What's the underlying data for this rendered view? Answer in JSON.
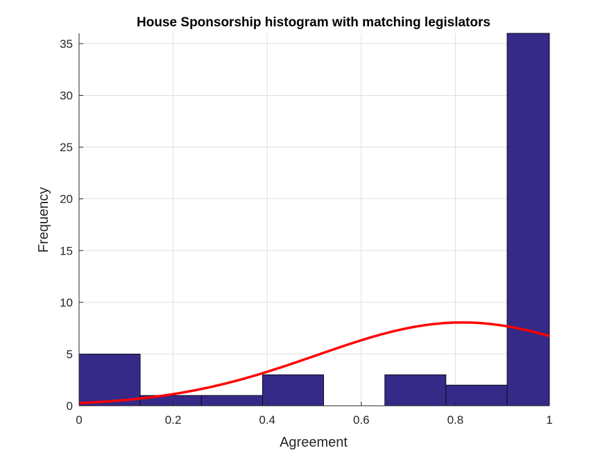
{
  "chart_data": {
    "type": "bar",
    "title": "House Sponsorship histogram with matching legislators",
    "xlabel": "Agreement",
    "ylabel": "Frequency",
    "xlim": [
      0,
      1
    ],
    "ylim": [
      0,
      36
    ],
    "xticks": [
      0,
      0.2,
      0.4,
      0.6,
      0.8,
      1
    ],
    "xtick_labels": [
      "0",
      "0.2",
      "0.4",
      "0.6",
      "0.8",
      "1"
    ],
    "yticks": [
      0,
      5,
      10,
      15,
      20,
      25,
      30,
      35
    ],
    "ytick_labels": [
      "0",
      "5",
      "10",
      "15",
      "20",
      "25",
      "30",
      "35"
    ],
    "grid": true,
    "bins": {
      "edges": [
        0,
        0.13,
        0.26,
        0.39,
        0.52,
        0.65,
        0.78,
        0.91,
        1.0
      ],
      "values": [
        5,
        1,
        1,
        3,
        0,
        3,
        2,
        36
      ]
    },
    "fit_curve": {
      "type": "normal",
      "mean": 0.815,
      "sd": 0.31,
      "peak": 8.05
    },
    "colors": {
      "bar_fill": "#352a87",
      "fit_line": "#ff0000"
    }
  }
}
